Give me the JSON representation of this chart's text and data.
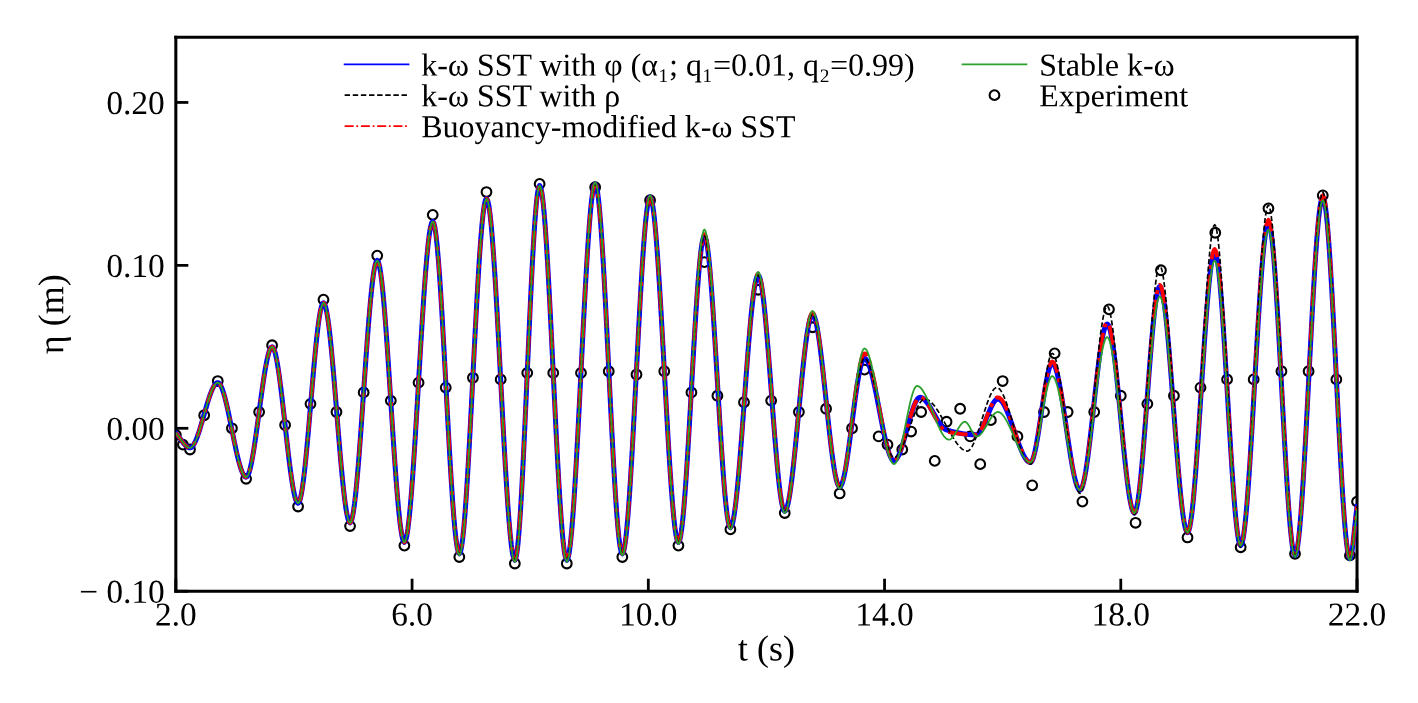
{
  "chart_data": {
    "type": "line",
    "xlabel": "t (s)",
    "ylabel": "η (m)",
    "xlim": [
      2,
      22
    ],
    "ylim": [
      -0.1,
      0.24
    ],
    "xticks": [
      {
        "value": 2,
        "label": "2.0"
      },
      {
        "value": 6,
        "label": "6.0"
      },
      {
        "value": 10,
        "label": "10.0"
      },
      {
        "value": 14,
        "label": "14.0"
      },
      {
        "value": 18,
        "label": "18.0"
      },
      {
        "value": 22,
        "label": "22.0"
      }
    ],
    "yticks": [
      {
        "value": -0.1,
        "label": "− 0.10"
      },
      {
        "value": 0,
        "label": "0.00"
      },
      {
        "value": 0.1,
        "label": "0.10"
      },
      {
        "value": 0.2,
        "label": "0.20"
      }
    ],
    "grid": false,
    "legend": "top",
    "series": [
      {
        "name": "k-ω SST with φ (α₁; q₁=0.01, q₂=0.99)",
        "type": "line",
        "color": "#0000ff",
        "line_style": "solid",
        "x": [
          2.0,
          2.24,
          2.71,
          3.19,
          3.63,
          4.07,
          4.5,
          4.95,
          5.41,
          5.87,
          6.35,
          6.8,
          7.26,
          7.74,
          8.16,
          8.62,
          9.1,
          9.56,
          10.03,
          10.51,
          10.95,
          11.39,
          11.86,
          12.31,
          12.78,
          13.24,
          13.66,
          14.16,
          14.6,
          15.05,
          15.55,
          15.92,
          16.47,
          16.84,
          17.31,
          17.77,
          18.23,
          18.66,
          19.13,
          19.59,
          20.03,
          20.5,
          20.95,
          21.42,
          21.88,
          22.0
        ],
        "values": [
          -0.003,
          -0.012,
          0.028,
          -0.03,
          0.05,
          -0.046,
          0.077,
          -0.058,
          0.103,
          -0.07,
          0.127,
          -0.077,
          0.141,
          -0.081,
          0.149,
          -0.081,
          0.15,
          -0.077,
          0.142,
          -0.07,
          0.118,
          -0.061,
          0.094,
          -0.051,
          0.07,
          -0.036,
          0.043,
          -0.02,
          0.019,
          -0.001,
          -0.004,
          0.018,
          -0.021,
          0.04,
          -0.038,
          0.064,
          -0.052,
          0.087,
          -0.064,
          0.108,
          -0.072,
          0.126,
          -0.078,
          0.142,
          -0.08,
          -0.048
        ]
      },
      {
        "name": "k-ω SST with ρ",
        "type": "line",
        "color": "#000000",
        "line_style": "dashed",
        "x": [
          2.0,
          2.24,
          2.71,
          3.19,
          3.63,
          4.07,
          4.5,
          4.95,
          5.41,
          5.87,
          6.35,
          6.8,
          7.26,
          7.74,
          8.16,
          8.62,
          9.1,
          9.56,
          10.03,
          10.51,
          10.95,
          11.39,
          11.86,
          12.31,
          12.78,
          13.24,
          13.66,
          14.16,
          14.68,
          15.4,
          15.9,
          16.47,
          16.84,
          17.31,
          17.77,
          18.23,
          18.66,
          19.13,
          19.59,
          20.03,
          20.5,
          20.95,
          21.42,
          21.88,
          22.0
        ],
        "values": [
          -0.003,
          -0.012,
          0.028,
          -0.03,
          0.05,
          -0.046,
          0.077,
          -0.058,
          0.103,
          -0.07,
          0.127,
          -0.077,
          0.141,
          -0.081,
          0.149,
          -0.081,
          0.15,
          -0.077,
          0.142,
          -0.07,
          0.118,
          -0.061,
          0.094,
          -0.051,
          0.07,
          -0.036,
          0.043,
          -0.018,
          0.018,
          -0.014,
          0.025,
          -0.022,
          0.046,
          -0.04,
          0.075,
          -0.053,
          0.1,
          -0.065,
          0.125,
          -0.073,
          0.137,
          -0.078,
          0.145,
          -0.08,
          -0.048
        ]
      },
      {
        "name": "Buoyancy-modified k-ω SST",
        "type": "line",
        "color": "#ff0000",
        "line_style": "dashdot",
        "x": [
          2.0,
          2.24,
          2.71,
          3.19,
          3.63,
          4.07,
          4.5,
          4.95,
          5.41,
          5.87,
          6.35,
          6.8,
          7.26,
          7.74,
          8.16,
          8.62,
          9.1,
          9.56,
          10.03,
          10.51,
          10.95,
          11.39,
          11.86,
          12.31,
          12.78,
          13.24,
          13.66,
          14.16,
          14.6,
          15.05,
          15.55,
          15.92,
          16.47,
          16.84,
          17.31,
          17.77,
          18.23,
          18.66,
          19.13,
          19.59,
          20.03,
          20.5,
          20.95,
          21.42,
          21.88,
          22.0
        ],
        "values": [
          -0.003,
          -0.012,
          0.028,
          -0.03,
          0.05,
          -0.046,
          0.077,
          -0.058,
          0.103,
          -0.07,
          0.127,
          -0.077,
          0.141,
          -0.081,
          0.149,
          -0.081,
          0.15,
          -0.077,
          0.142,
          -0.07,
          0.119,
          -0.061,
          0.095,
          -0.051,
          0.071,
          -0.036,
          0.046,
          -0.02,
          0.019,
          -0.002,
          -0.004,
          0.019,
          -0.021,
          0.041,
          -0.038,
          0.065,
          -0.052,
          0.088,
          -0.064,
          0.11,
          -0.072,
          0.128,
          -0.078,
          0.143,
          -0.08,
          -0.048
        ]
      },
      {
        "name": "Stable k-ω",
        "type": "line",
        "color": "#2ca02c",
        "line_style": "solid",
        "x": [
          2.0,
          2.24,
          2.71,
          3.19,
          3.63,
          4.07,
          4.5,
          4.95,
          5.41,
          5.87,
          6.35,
          6.8,
          7.26,
          7.74,
          8.16,
          8.62,
          9.1,
          9.56,
          10.03,
          10.51,
          10.95,
          11.39,
          11.86,
          12.31,
          12.78,
          13.24,
          13.66,
          14.16,
          14.55,
          15.09,
          15.36,
          15.56,
          15.92,
          16.47,
          16.84,
          17.31,
          17.77,
          18.23,
          18.66,
          19.13,
          19.59,
          20.03,
          20.5,
          20.95,
          21.42,
          21.88,
          22.0
        ],
        "values": [
          -0.003,
          -0.012,
          0.028,
          -0.03,
          0.05,
          -0.046,
          0.077,
          -0.058,
          0.103,
          -0.07,
          0.127,
          -0.078,
          0.141,
          -0.082,
          0.149,
          -0.082,
          0.151,
          -0.078,
          0.143,
          -0.071,
          0.122,
          -0.062,
          0.096,
          -0.052,
          0.072,
          -0.037,
          0.049,
          -0.022,
          0.026,
          -0.007,
          0.004,
          -0.005,
          0.01,
          -0.021,
          0.032,
          -0.038,
          0.056,
          -0.052,
          0.081,
          -0.064,
          0.103,
          -0.072,
          0.122,
          -0.079,
          0.14,
          -0.081,
          -0.05
        ]
      },
      {
        "name": "Experiment",
        "type": "scatter",
        "color": "#000000",
        "marker": "circle",
        "x": [
          2.0,
          2.12,
          2.24,
          2.48,
          2.71,
          2.95,
          3.19,
          3.41,
          3.63,
          3.85,
          4.07,
          4.28,
          4.5,
          4.72,
          4.95,
          5.18,
          5.41,
          5.64,
          5.87,
          6.11,
          6.35,
          6.57,
          6.8,
          7.03,
          7.26,
          7.5,
          7.74,
          7.95,
          8.16,
          8.39,
          8.62,
          8.86,
          9.1,
          9.33,
          9.56,
          9.8,
          10.03,
          10.27,
          10.51,
          10.73,
          10.95,
          11.17,
          11.39,
          11.62,
          11.86,
          12.08,
          12.31,
          12.55,
          12.78,
          13.01,
          13.24,
          13.45,
          13.66,
          13.9,
          14.05,
          14.3,
          14.45,
          14.62,
          14.85,
          15.05,
          15.28,
          15.45,
          15.62,
          15.8,
          16.0,
          16.25,
          16.5,
          16.7,
          16.88,
          17.1,
          17.35,
          17.55,
          17.8,
          18.0,
          18.25,
          18.45,
          18.68,
          18.9,
          19.13,
          19.35,
          19.6,
          19.8,
          20.03,
          20.25,
          20.5,
          20.72,
          20.95,
          21.18,
          21.42,
          21.65,
          21.88,
          22.0
        ],
        "values": [
          -0.004,
          -0.01,
          -0.013,
          0.008,
          0.029,
          0.0,
          -0.031,
          0.01,
          0.051,
          0.002,
          -0.048,
          0.015,
          0.079,
          0.01,
          -0.06,
          0.022,
          0.106,
          0.017,
          -0.072,
          0.028,
          0.131,
          0.025,
          -0.079,
          0.031,
          0.145,
          0.03,
          -0.083,
          0.034,
          0.15,
          0.034,
          -0.083,
          0.034,
          0.148,
          0.035,
          -0.079,
          0.033,
          0.14,
          0.035,
          -0.072,
          0.022,
          0.102,
          0.02,
          -0.062,
          0.016,
          0.085,
          0.017,
          -0.052,
          0.01,
          0.062,
          0.012,
          -0.04,
          0.0,
          0.036,
          -0.005,
          -0.01,
          -0.013,
          -0.002,
          0.01,
          -0.02,
          0.004,
          0.012,
          -0.005,
          -0.022,
          0.005,
          0.029,
          -0.005,
          -0.035,
          0.01,
          0.046,
          0.01,
          -0.045,
          0.01,
          0.073,
          0.02,
          -0.058,
          0.015,
          0.097,
          0.02,
          -0.067,
          0.025,
          0.12,
          0.03,
          -0.073,
          0.03,
          0.135,
          0.035,
          -0.077,
          0.035,
          0.143,
          0.03,
          -0.078,
          -0.045
        ]
      }
    ]
  }
}
